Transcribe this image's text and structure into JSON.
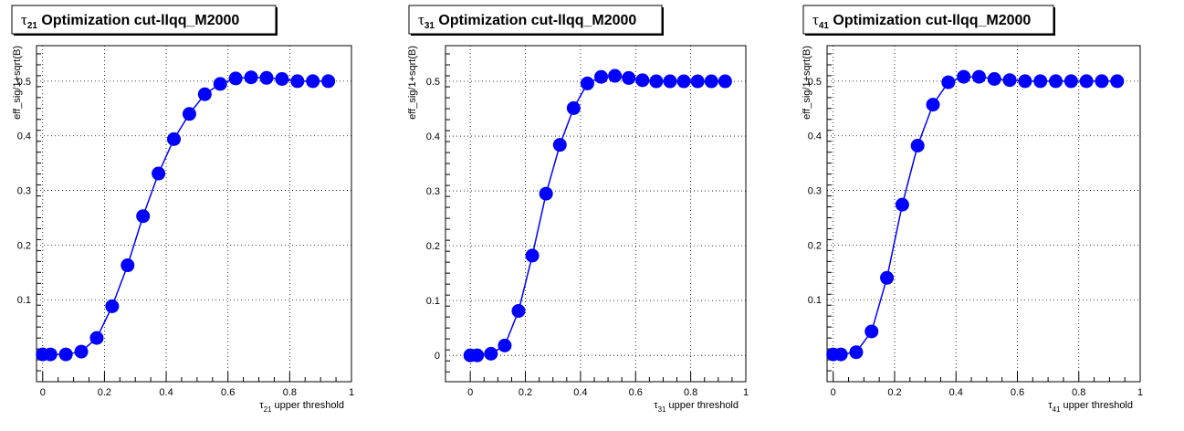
{
  "colors": {
    "marker": "#0000ff",
    "line": "#0000ff",
    "frame": "#000000",
    "grid": "#000000"
  },
  "chart_data": [
    {
      "type": "line",
      "grid": true,
      "title_symbol": "τ",
      "title_sub": "21",
      "title_text": " Optimization cut-llqq_M2000",
      "xlabel_symbol": "τ",
      "xlabel_sub": "21",
      "xlabel_text": " upper threshold",
      "ylabel": "eff_sig/1+sqrt(B)",
      "xlim": [
        -0.02,
        1.0
      ],
      "ylim": [
        -0.05,
        0.565
      ],
      "xticks": [
        0,
        0.2,
        0.4,
        0.6,
        0.8,
        1
      ],
      "xtick_labels": [
        "0",
        "0.2",
        "0.4",
        "0.6",
        "0.8",
        "1"
      ],
      "yticks": [
        0.1,
        0.2,
        0.3,
        0.4,
        0.5
      ],
      "ytick_labels": [
        "0.1",
        "0.2",
        "0.3",
        "0.4",
        "0.5"
      ],
      "series": [
        {
          "x": [
            0,
            0.025,
            0.075,
            0.125,
            0.175,
            0.225,
            0.275,
            0.325,
            0.375,
            0.425,
            0.475,
            0.525,
            0.575,
            0.625,
            0.675,
            0.725,
            0.775,
            0.825,
            0.875,
            0.925
          ],
          "y": [
            0.0,
            0.0,
            0.0,
            0.005,
            0.03,
            0.088,
            0.163,
            0.253,
            0.331,
            0.394,
            0.44,
            0.476,
            0.495,
            0.505,
            0.507,
            0.506,
            0.504,
            0.5,
            0.5,
            0.5
          ]
        }
      ]
    },
    {
      "type": "line",
      "grid": true,
      "title_symbol": "τ",
      "title_sub": "31",
      "title_text": " Optimization cut-llqq_M2000",
      "xlabel_symbol": "τ",
      "xlabel_sub": "31",
      "xlabel_text": " upper threshold",
      "ylabel": "eff_sig/1+sqrt(B)",
      "xlim": [
        -0.09,
        1.0
      ],
      "ylim": [
        -0.048,
        0.565
      ],
      "xticks": [
        0,
        0.2,
        0.4,
        0.6,
        0.8,
        1
      ],
      "xtick_labels": [
        "0",
        "0.2",
        "0.4",
        "0.6",
        "0.8",
        "1"
      ],
      "yticks": [
        0,
        0.1,
        0.2,
        0.3,
        0.4,
        0.5
      ],
      "ytick_labels": [
        "0",
        "0.1",
        "0.2",
        "0.3",
        "0.4",
        "0.5"
      ],
      "series": [
        {
          "x": [
            0,
            0.025,
            0.075,
            0.125,
            0.175,
            0.225,
            0.275,
            0.325,
            0.375,
            0.425,
            0.475,
            0.525,
            0.575,
            0.625,
            0.675,
            0.725,
            0.775,
            0.825,
            0.875,
            0.925
          ],
          "y": [
            0.0,
            0.0,
            0.003,
            0.018,
            0.081,
            0.182,
            0.295,
            0.384,
            0.451,
            0.496,
            0.508,
            0.51,
            0.506,
            0.502,
            0.5,
            0.5,
            0.5,
            0.5,
            0.5,
            0.5
          ]
        }
      ]
    },
    {
      "type": "line",
      "grid": true,
      "title_symbol": "τ",
      "title_sub": "41",
      "title_text": " Optimization cut-llqq_M2000",
      "xlabel_symbol": "τ",
      "xlabel_sub": "41",
      "xlabel_text": " upper threshold",
      "ylabel": "eff_sig/1+sqrt(B)",
      "xlim": [
        -0.02,
        1.0
      ],
      "ylim": [
        -0.05,
        0.565
      ],
      "xticks": [
        0,
        0.2,
        0.4,
        0.6,
        0.8,
        1
      ],
      "xtick_labels": [
        "0",
        "0.2",
        "0.4",
        "0.6",
        "0.8",
        "1"
      ],
      "yticks": [
        0.1,
        0.2,
        0.3,
        0.4,
        0.5
      ],
      "ytick_labels": [
        "0.1",
        "0.2",
        "0.3",
        "0.4",
        "0.5"
      ],
      "series": [
        {
          "x": [
            0,
            0.025,
            0.075,
            0.125,
            0.175,
            0.225,
            0.275,
            0.325,
            0.375,
            0.425,
            0.475,
            0.525,
            0.575,
            0.625,
            0.675,
            0.725,
            0.775,
            0.825,
            0.875,
            0.925
          ],
          "y": [
            0.0,
            0.0,
            0.004,
            0.042,
            0.14,
            0.274,
            0.382,
            0.457,
            0.498,
            0.508,
            0.508,
            0.504,
            0.502,
            0.5,
            0.5,
            0.5,
            0.5,
            0.5,
            0.5,
            0.5
          ]
        }
      ]
    }
  ]
}
